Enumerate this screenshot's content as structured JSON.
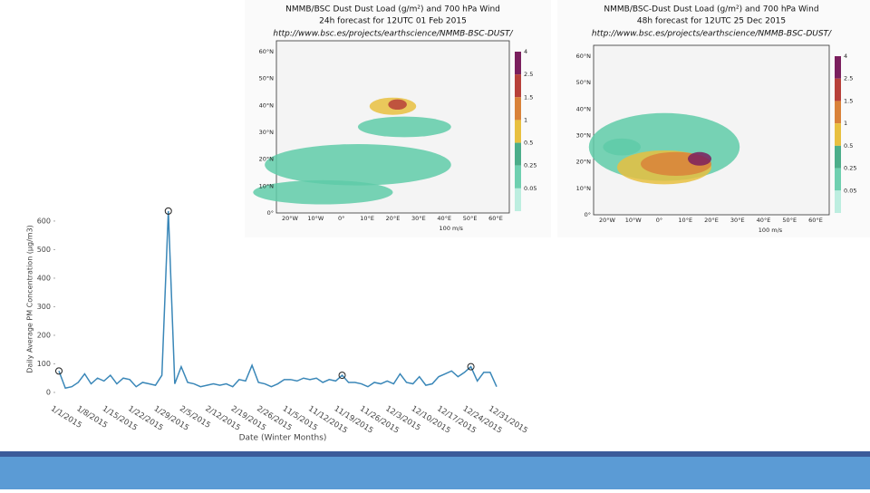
{
  "chart_data": {
    "type": "line",
    "xlabel": "Date (Winter Months)",
    "ylabel": "Daily Average PM Concentration (µg/m3)",
    "categories": [
      "1/1/2015",
      null,
      null,
      null,
      "1/8/2015",
      null,
      null,
      null,
      "1/15/2015",
      null,
      null,
      null,
      "1/22/2015",
      null,
      null,
      null,
      "1/29/2015",
      null,
      null,
      null,
      "2/5/2015",
      null,
      null,
      null,
      "2/12/2015",
      null,
      null,
      null,
      "2/19/2015",
      null,
      null,
      null,
      "2/26/2015",
      null,
      null,
      null,
      "11/5/2015",
      null,
      null,
      null,
      "11/12/2015",
      null,
      null,
      null,
      "11/19/2015",
      null,
      null,
      null,
      "11/26/2015",
      null,
      null,
      null,
      "12/3/2015",
      null,
      null,
      null,
      "12/10/2015",
      null,
      null,
      null,
      "12/17/2015",
      null,
      null,
      null,
      "12/24/2015",
      null,
      null,
      null,
      "12/31/2015"
    ],
    "values": [
      75,
      15,
      20,
      35,
      65,
      30,
      50,
      40,
      60,
      30,
      50,
      45,
      20,
      35,
      30,
      25,
      60,
      635,
      30,
      90,
      35,
      30,
      20,
      25,
      30,
      25,
      30,
      20,
      45,
      40,
      95,
      35,
      30,
      20,
      30,
      45,
      45,
      40,
      50,
      45,
      50,
      35,
      45,
      40,
      60,
      35,
      35,
      30,
      20,
      35,
      30,
      40,
      30,
      65,
      35,
      30,
      55,
      25,
      30,
      55,
      65,
      75,
      55,
      70,
      90,
      40,
      70,
      70,
      20
    ],
    "color": "#3a87b8",
    "circled_points": [
      0,
      17,
      44,
      64
    ],
    "ylim": [
      -20,
      660
    ],
    "yticks": [
      0,
      100,
      200,
      300,
      400,
      500,
      600
    ]
  },
  "maps": [
    {
      "title": "NMMB/BSC Dust Dust Load (g/m²) and 700 hPa Wind",
      "subtitle": "24h forecast for 12UTC 01 Feb 2015",
      "url": "http://www.bsc.es/projects/earthscience/NMMB-BSC-DUST/",
      "lat_labels": [
        "60°N",
        "50°N",
        "40°N",
        "30°N",
        "20°N",
        "10°N",
        "0°"
      ],
      "lon_labels": [
        "20°W",
        "10°W",
        "0°",
        "10°E",
        "20°E",
        "30°E",
        "40°E",
        "50°E",
        "60°E"
      ],
      "colorbar_labels": [
        "4",
        "2.5",
        "1.5",
        "1",
        "0.5",
        "0.25",
        "0.05"
      ],
      "scale": "100 m/s"
    },
    {
      "title": "NMMB/BSC-Dust Dust Load (g/m²) and 700 hPa Wind",
      "subtitle": "48h forecast for 12UTC 25 Dec 2015",
      "url": "http://www.bsc.es/projects/earthscience/NMMB-BSC-DUST/",
      "lat_labels": [
        "60°N",
        "50°N",
        "40°N",
        "30°N",
        "20°N",
        "10°N",
        "0°"
      ],
      "lon_labels": [
        "20°W",
        "10°W",
        "0°",
        "10°E",
        "20°E",
        "30°E",
        "40°E",
        "50°E",
        "60°E"
      ],
      "colorbar_labels": [
        "4",
        "2.5",
        "1.5",
        "1",
        "0.5",
        "0.25",
        "0.05"
      ],
      "scale": "100 m/s"
    }
  ]
}
